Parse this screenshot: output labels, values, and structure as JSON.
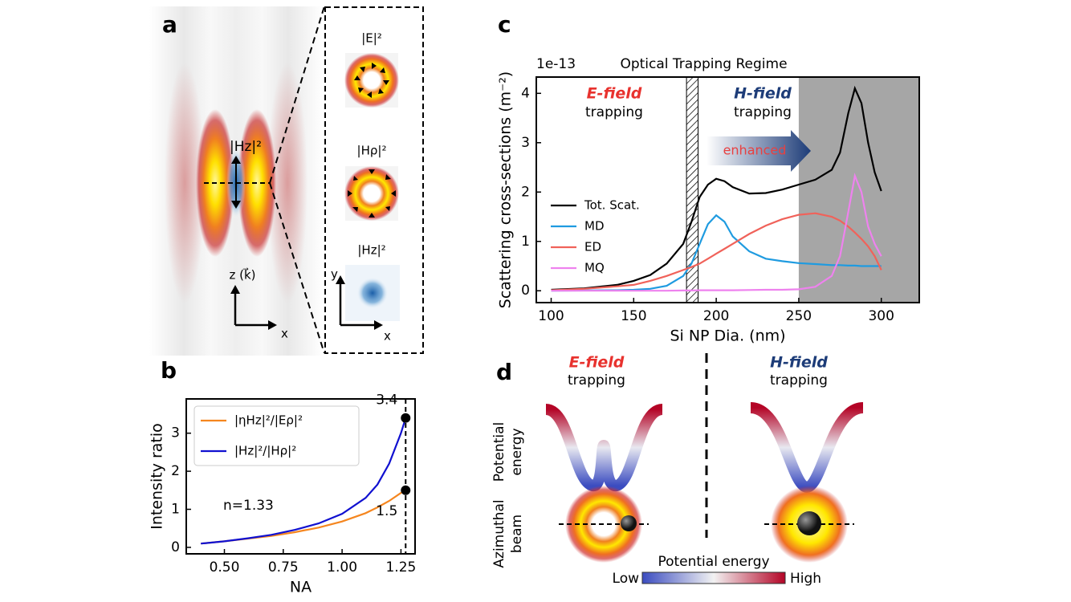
{
  "chart_data": [
    {
      "type": "line",
      "xlabel": "NA",
      "ylabel": "Intensity ratio",
      "x": [
        0.4,
        0.5,
        0.6,
        0.7,
        0.8,
        0.9,
        1.0,
        1.1,
        1.15,
        1.2,
        1.25,
        1.27
      ],
      "series": [
        {
          "name": "|ηHz|²/|Eρ|²",
          "color": "#f5861f",
          "values": [
            0.1,
            0.16,
            0.23,
            0.3,
            0.4,
            0.52,
            0.68,
            0.9,
            1.05,
            1.22,
            1.43,
            1.5
          ]
        },
        {
          "name": "|Hz|²/|Hρ|²",
          "color": "#1010d0",
          "values": [
            0.1,
            0.16,
            0.24,
            0.33,
            0.46,
            0.63,
            0.88,
            1.3,
            1.65,
            2.2,
            3.0,
            3.4
          ]
        }
      ],
      "points": [
        {
          "x": 1.27,
          "y": 3.4
        },
        {
          "x": 1.27,
          "y": 1.5
        }
      ],
      "vline": 1.27,
      "annotations": [
        "n=1.33"
      ],
      "xlim": [
        0.338,
        1.31
      ],
      "ylim": [
        -0.17,
        3.9
      ],
      "xticks": [
        {
          "value": 0.5,
          "label": "0.50"
        },
        {
          "value": 0.75,
          "label": "0.75"
        },
        {
          "value": 1.0,
          "label": "1.00"
        },
        {
          "value": 1.25,
          "label": "1.25"
        }
      ],
      "yticks": [
        0,
        1,
        2,
        3
      ]
    },
    {
      "type": "line",
      "title": "Optical Trapping Regime",
      "xlabel": "Si NP Dia. (nm)",
      "ylabel": "Scattering cross-sections (m⁻²)",
      "y_offset_label": "1e-13",
      "x": [
        100,
        120,
        140,
        150,
        160,
        170,
        180,
        185,
        190,
        195,
        200,
        205,
        210,
        220,
        230,
        240,
        250,
        260,
        270,
        275,
        280,
        284,
        288,
        292,
        296,
        300
      ],
      "series": [
        {
          "name": "Tot. Scat.",
          "color": "#000000",
          "values": [
            0.02,
            0.05,
            0.12,
            0.2,
            0.32,
            0.55,
            0.95,
            1.4,
            1.9,
            2.15,
            2.27,
            2.22,
            2.1,
            1.97,
            1.98,
            2.05,
            2.15,
            2.25,
            2.45,
            2.8,
            3.6,
            4.1,
            3.8,
            3.0,
            2.4,
            2.02
          ]
        },
        {
          "name": "MD",
          "color": "#1f9be0",
          "values": [
            0,
            0.005,
            0.01,
            0.02,
            0.04,
            0.1,
            0.3,
            0.55,
            0.95,
            1.35,
            1.53,
            1.4,
            1.1,
            0.8,
            0.65,
            0.6,
            0.56,
            0.54,
            0.52,
            0.52,
            0.51,
            0.51,
            0.5,
            0.5,
            0.5,
            0.5
          ]
        },
        {
          "name": "ED",
          "color": "#f0625a",
          "values": [
            0.01,
            0.04,
            0.09,
            0.12,
            0.2,
            0.3,
            0.42,
            0.48,
            0.55,
            0.65,
            0.75,
            0.85,
            0.95,
            1.15,
            1.32,
            1.45,
            1.54,
            1.57,
            1.5,
            1.42,
            1.3,
            1.18,
            1.05,
            0.9,
            0.7,
            0.42
          ]
        },
        {
          "name": "MQ",
          "color": "#ee82ee",
          "values": [
            0,
            0,
            0,
            0,
            0,
            0,
            0.005,
            0.005,
            0.01,
            0.01,
            0.01,
            0.01,
            0.01,
            0.015,
            0.02,
            0.02,
            0.03,
            0.08,
            0.3,
            0.7,
            1.6,
            2.33,
            2.0,
            1.3,
            0.95,
            0.7
          ]
        }
      ],
      "regions": [
        {
          "x": [
            182,
            189
          ],
          "hatch": true
        },
        {
          "x": [
            250,
            323
          ],
          "color": "#a6a6a6"
        }
      ],
      "annotations": [
        "E-field",
        "trapping",
        "H-field",
        "trapping",
        "enhanced"
      ],
      "xlim": [
        91,
        323
      ],
      "ylim": [
        -0.24,
        4.33
      ],
      "xticks": [
        100,
        150,
        200,
        250,
        300
      ],
      "yticks": [
        0,
        1,
        2,
        3,
        4
      ]
    }
  ],
  "panels": {
    "a": {
      "label": "a",
      "field": "|Hz|²",
      "axis_z": "z (k⃗)",
      "axis_x": "x",
      "insets": [
        {
          "title": "|E|²"
        },
        {
          "title": "|Hρ|²"
        },
        {
          "title": "|Hz|²",
          "axis_y": "y",
          "axis_x": "x"
        }
      ]
    },
    "b": {
      "label": "b"
    },
    "c": {
      "label": "c"
    },
    "d": {
      "label": "d",
      "left": [
        "E-field",
        "trapping"
      ],
      "right": [
        "H-field",
        "trapping"
      ],
      "row_labels": [
        [
          "Potential",
          "energy"
        ],
        [
          "Azimuthal",
          "beam"
        ]
      ],
      "colorbar": {
        "title": "Potential energy",
        "low": "Low",
        "high": "High"
      }
    }
  }
}
